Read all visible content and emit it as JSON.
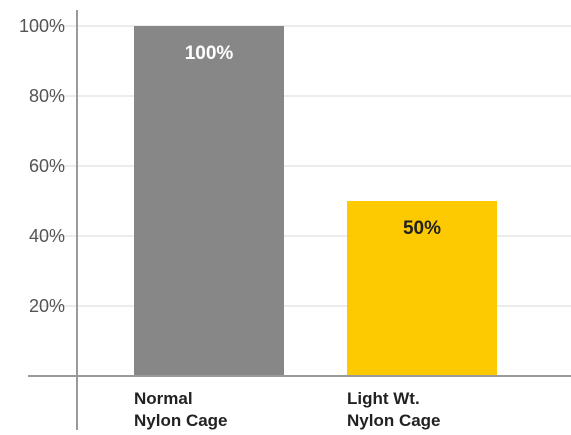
{
  "chart_data": {
    "type": "bar",
    "categories": [
      [
        "Normal",
        "Nylon Cage"
      ],
      [
        "Light Wt.",
        "Nylon Cage"
      ]
    ],
    "values": [
      100,
      50
    ],
    "data_labels": [
      "100%",
      "50%"
    ],
    "yticks": [
      {
        "value": 20,
        "label": "20%"
      },
      {
        "value": 40,
        "label": "40%"
      },
      {
        "value": 60,
        "label": "60%"
      },
      {
        "value": 80,
        "label": "80%"
      },
      {
        "value": 100,
        "label": "100%"
      }
    ],
    "ylim": [
      0,
      100
    ],
    "grid": true,
    "legend": "none",
    "title": "",
    "xlabel": "",
    "ylabel": "",
    "colors": {
      "bars": [
        "#878787",
        "#fdc900"
      ],
      "data_labels": [
        "#ffffff",
        "#222222"
      ],
      "grid": "#d9d9d9",
      "axis": "#9a9a9a"
    }
  }
}
